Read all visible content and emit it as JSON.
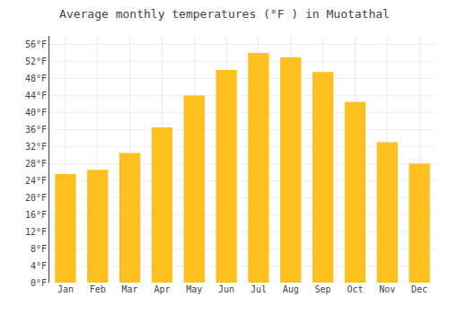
{
  "chart_data": {
    "type": "bar",
    "title": "Average monthly temperatures (°F ) in Muotathal",
    "categories": [
      "Jan",
      "Feb",
      "Mar",
      "Apr",
      "May",
      "Jun",
      "Jul",
      "Aug",
      "Sep",
      "Oct",
      "Nov",
      "Dec"
    ],
    "values": [
      25.5,
      26.5,
      30.5,
      36.5,
      44.0,
      50.0,
      54.0,
      53.0,
      49.5,
      42.5,
      33.0,
      28.0
    ],
    "color": "#FFC020",
    "ylim": [
      0,
      58
    ],
    "yticks": [
      {
        "value": 0,
        "label": "0°F"
      },
      {
        "value": 4,
        "label": "4°F"
      },
      {
        "value": 8,
        "label": "8°F"
      },
      {
        "value": 12,
        "label": "12°F"
      },
      {
        "value": 16,
        "label": "16°F"
      },
      {
        "value": 20,
        "label": "20°F"
      },
      {
        "value": 24,
        "label": "24°F"
      },
      {
        "value": 28,
        "label": "28°F"
      },
      {
        "value": 32,
        "label": "32°F"
      },
      {
        "value": 36,
        "label": "36°F"
      },
      {
        "value": 40,
        "label": "40°F"
      },
      {
        "value": 44,
        "label": "44°F"
      },
      {
        "value": 48,
        "label": "48°F"
      },
      {
        "value": 52,
        "label": "52°F"
      },
      {
        "value": 56,
        "label": "56°F"
      }
    ],
    "grid": true
  }
}
